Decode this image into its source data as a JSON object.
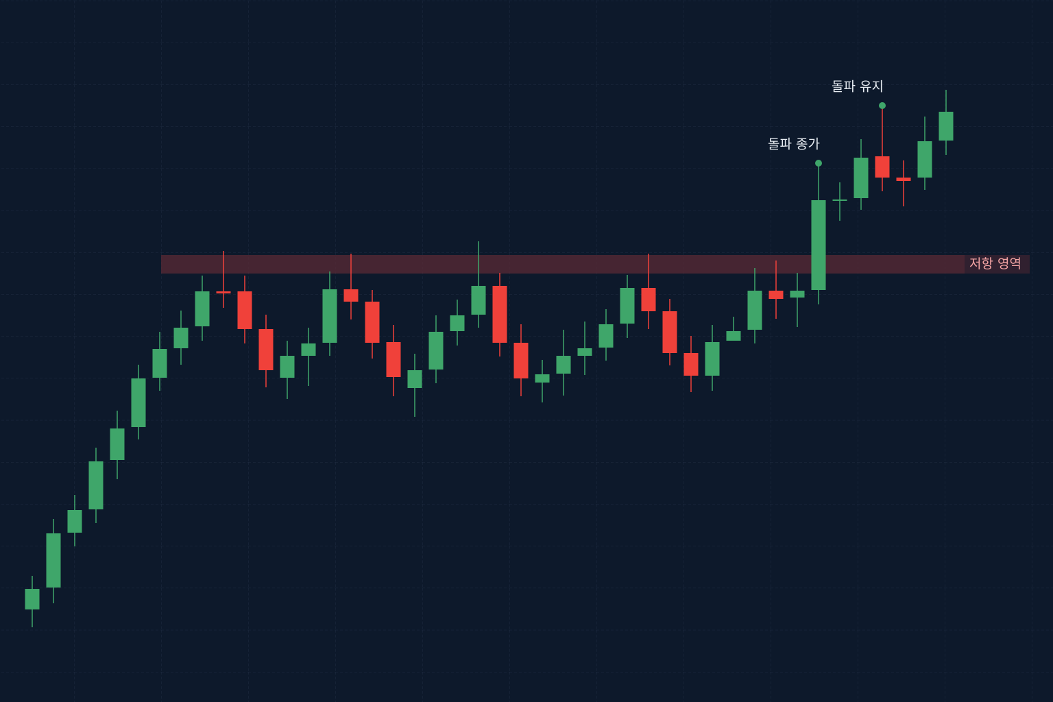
{
  "chart_data": {
    "type": "candlestick",
    "ylim": [
      0,
      1024
    ],
    "grid": true,
    "up_color": "#3fa66a",
    "down_color": "#f0413a",
    "series": [
      {
        "open": [
          135,
          167,
          247,
          281,
          353,
          401,
          473,
          516,
          548,
          599,
          599,
          544,
          473,
          505,
          524,
          602,
          584,
          525,
          458,
          485,
          541,
          565,
          607,
          524,
          466,
          479,
          505,
          517,
          552,
          604,
          570,
          509,
          476,
          527,
          543,
          600,
          590,
          601,
          731,
          735,
          796,
          765,
          765,
          819
        ],
        "high": [
          184,
          267,
          302,
          371,
          425,
          492,
          540,
          571,
          622,
          658,
          622,
          565,
          527,
          546,
          628,
          654,
          601,
          550,
          508,
          564,
          587,
          672,
          626,
          551,
          499,
          543,
          555,
          573,
          623,
          654,
          588,
          534,
          550,
          562,
          633,
          644,
          626,
          786,
          758,
          821,
          870,
          790,
          854,
          893
        ],
        "low": [
          109,
          144,
          227,
          261,
          325,
          383,
          454,
          492,
          527,
          575,
          523,
          459,
          442,
          461,
          505,
          558,
          501,
          446,
          416,
          465,
          520,
          546,
          504,
          446,
          437,
          447,
          477,
          498,
          531,
          544,
          491,
          452,
          454,
          527,
          523,
          559,
          547,
          580,
          702,
          718,
          745,
          723,
          747,
          798
        ],
        "close": [
          165,
          246,
          280,
          351,
          399,
          472,
          515,
          546,
          599,
          596,
          544,
          484,
          505,
          523,
          602,
          584,
          524,
          474,
          484,
          540,
          564,
          607,
          524,
          472,
          478,
          505,
          516,
          551,
          604,
          570,
          509,
          476,
          525,
          541,
          600,
          588,
          600,
          732,
          733,
          794,
          765,
          760,
          818,
          861
        ]
      }
    ],
    "zone": {
      "label": "저항 영역",
      "low": 625,
      "high": 652,
      "color": "#5a2a35"
    },
    "annotations": [
      "돌파 종가",
      "돌파 유지"
    ]
  }
}
